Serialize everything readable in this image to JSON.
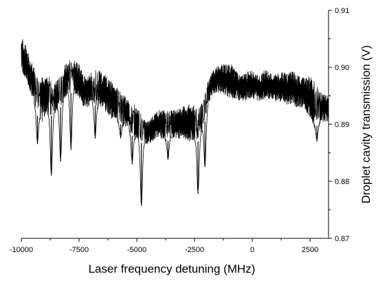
{
  "chart_data": {
    "type": "line",
    "title": "",
    "xlabel": "Laser frequency detuning (MHz)",
    "ylabel": "Droplet cavity transmission (V)",
    "xlim": [
      -10000,
      3300
    ],
    "ylim": [
      0.87,
      0.91
    ],
    "y_axis_side": "right",
    "grid": false,
    "legend": "none",
    "line_color": "#000000",
    "x_ticks": [
      -10000,
      -7500,
      -5000,
      -2500,
      0,
      2500
    ],
    "x_tick_labels": [
      "-10000",
      "-7500",
      "-5000",
      "-2500",
      "0",
      "2500"
    ],
    "y_ticks": [
      0.87,
      0.88,
      0.89,
      0.9,
      0.91
    ],
    "y_tick_labels": [
      "0.87",
      "0.88",
      "0.89",
      "0.90",
      "0.91"
    ],
    "series": [
      {
        "envelope_x": [
          -10000,
          -9800,
          -9500,
          -9300,
          -9100,
          -8900,
          -8700,
          -8500,
          -8300,
          -8100,
          -7900,
          -7700,
          -7500,
          -7300,
          -7100,
          -6900,
          -6700,
          -6500,
          -6300,
          -6100,
          -5900,
          -5700,
          -5500,
          -5300,
          -5100,
          -4900,
          -4700,
          -4500,
          -4300,
          -4100,
          -3900,
          -3700,
          -3500,
          -3300,
          -3100,
          -2900,
          -2700,
          -2500,
          -2300,
          -2100,
          -1900,
          -1700,
          -1500,
          -1300,
          -1100,
          -900,
          -700,
          -500,
          -300,
          -100,
          100,
          300,
          500,
          700,
          900,
          1100,
          1300,
          1500,
          1700,
          1900,
          2100,
          2300,
          2500,
          2700,
          2900,
          3100,
          3300
        ],
        "envelope_upper": [
          0.9055,
          0.904,
          0.9005,
          0.8985,
          0.899,
          0.8985,
          0.8985,
          0.8975,
          0.8985,
          0.9005,
          0.9015,
          0.9015,
          0.9005,
          0.8985,
          0.8985,
          0.8995,
          0.8995,
          0.899,
          0.8985,
          0.8975,
          0.8965,
          0.896,
          0.895,
          0.894,
          0.8935,
          0.8925,
          0.891,
          0.8905,
          0.8915,
          0.8925,
          0.8925,
          0.8925,
          0.8925,
          0.8925,
          0.893,
          0.8935,
          0.8935,
          0.8935,
          0.893,
          0.8945,
          0.898,
          0.8995,
          0.9005,
          0.9005,
          0.9005,
          0.9005,
          0.8995,
          0.8985,
          0.899,
          0.8995,
          0.8995,
          0.8985,
          0.8995,
          0.8995,
          0.8985,
          0.899,
          0.8995,
          0.899,
          0.8995,
          0.899,
          0.8985,
          0.8985,
          0.8985,
          0.8975,
          0.896,
          0.8955,
          0.895
        ],
        "envelope_lower": [
          0.8995,
          0.8975,
          0.8945,
          0.8915,
          0.8905,
          0.8915,
          0.8915,
          0.892,
          0.893,
          0.8945,
          0.8955,
          0.8955,
          0.8945,
          0.893,
          0.893,
          0.8935,
          0.893,
          0.893,
          0.892,
          0.891,
          0.8905,
          0.89,
          0.8895,
          0.8885,
          0.8875,
          0.887,
          0.8865,
          0.8865,
          0.887,
          0.8875,
          0.8875,
          0.887,
          0.8875,
          0.8875,
          0.8875,
          0.887,
          0.887,
          0.887,
          0.887,
          0.8895,
          0.8935,
          0.8955,
          0.8955,
          0.8955,
          0.895,
          0.8945,
          0.8945,
          0.894,
          0.894,
          0.8945,
          0.8945,
          0.894,
          0.8945,
          0.8945,
          0.894,
          0.894,
          0.894,
          0.8935,
          0.8935,
          0.893,
          0.893,
          0.8925,
          0.891,
          0.8895,
          0.89,
          0.8905,
          0.8905
        ],
        "dips": [
          {
            "x": -9300,
            "min": 0.8865
          },
          {
            "x": -8700,
            "min": 0.881
          },
          {
            "x": -8300,
            "min": 0.8835
          },
          {
            "x": -7850,
            "min": 0.8855
          },
          {
            "x": -6800,
            "min": 0.8875
          },
          {
            "x": -5700,
            "min": 0.8875
          },
          {
            "x": -5200,
            "min": 0.883
          },
          {
            "x": -4800,
            "min": 0.8757
          },
          {
            "x": -3650,
            "min": 0.8838
          },
          {
            "x": -2350,
            "min": 0.8778
          },
          {
            "x": -2050,
            "min": 0.8825
          },
          {
            "x": 2800,
            "min": 0.887
          }
        ]
      }
    ]
  }
}
